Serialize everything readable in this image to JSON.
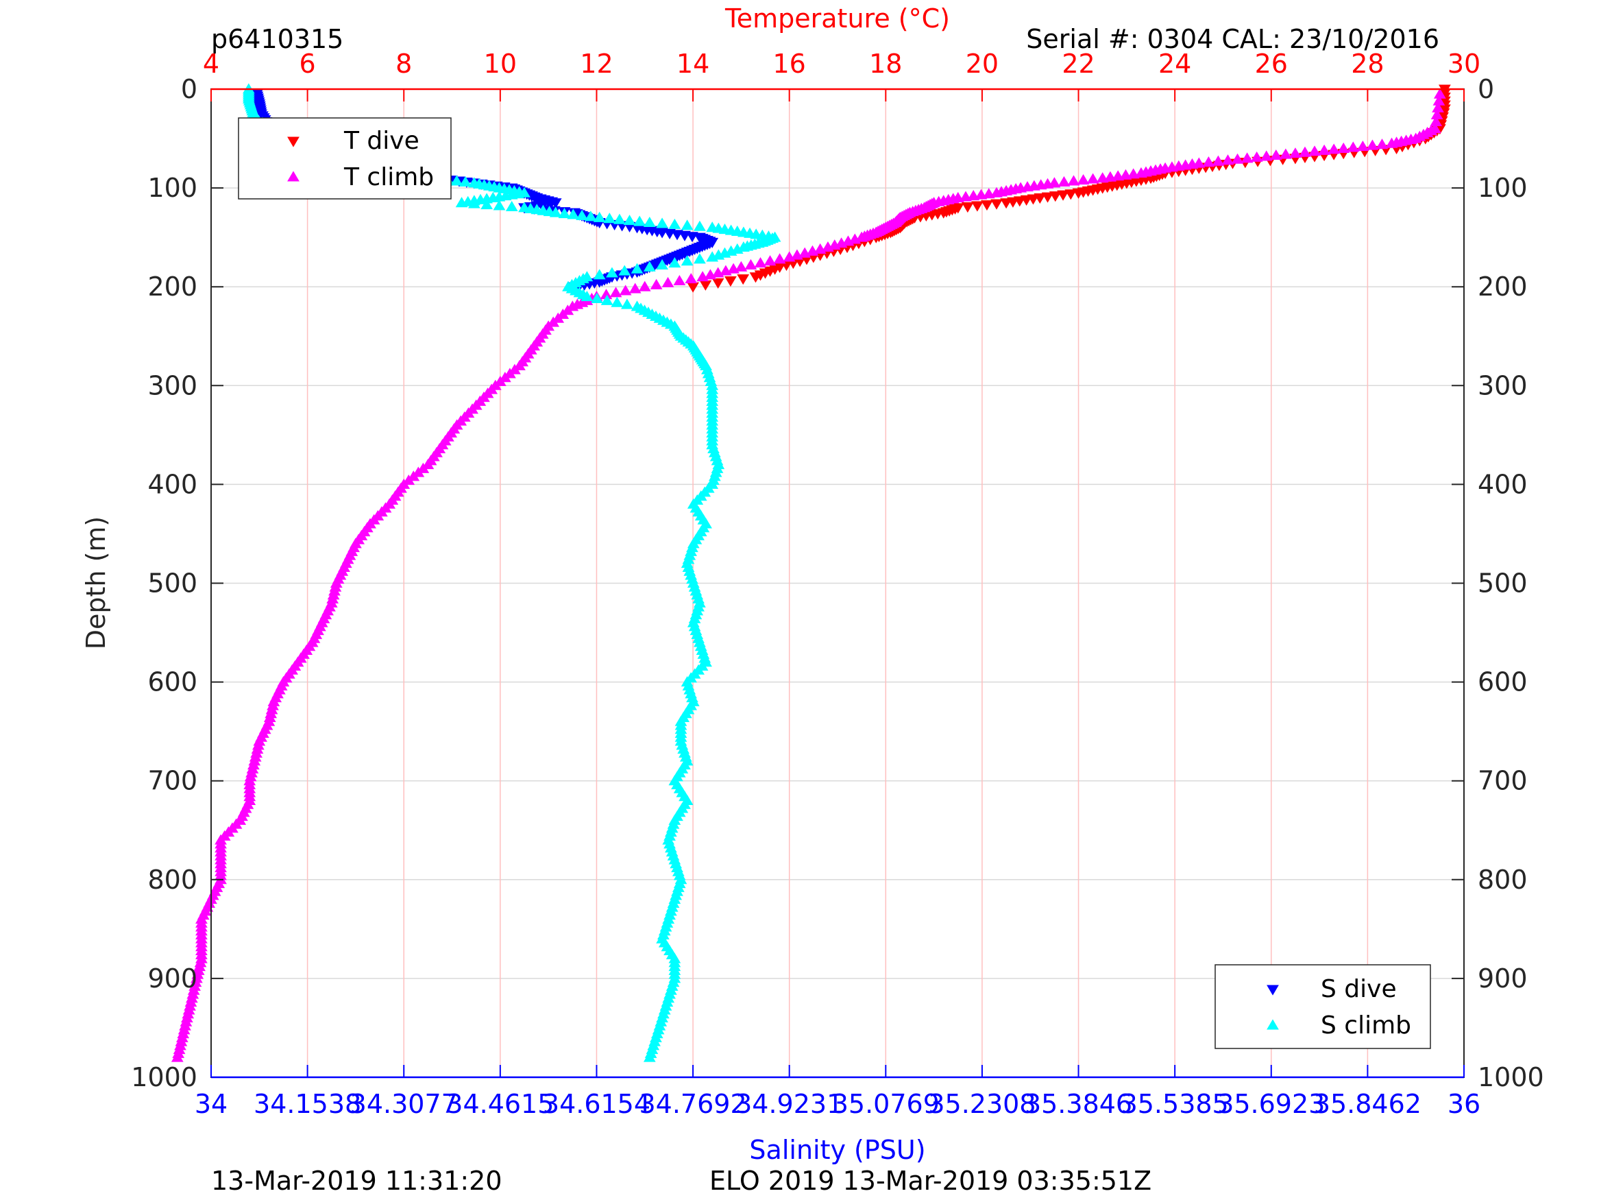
{
  "header": {
    "profile_id": "p6410315",
    "serial_cal": "Serial #: 0304  CAL: 23/10/2016"
  },
  "footer": {
    "timestamp_left": "13-Mar-2019 11:31:20",
    "timestamp_right": "ELO 2019 13-Mar-2019 03:35:51Z"
  },
  "colors": {
    "temperature_axis": "#ff0000",
    "salinity_axis": "#0000ff",
    "t_dive": "#ff0000",
    "t_climb": "#ff00ff",
    "s_dive": "#0000ff",
    "s_climb": "#00ffff",
    "temp_grid": "#ffbfbf",
    "depth_grid": "#d9d9d9"
  },
  "chart_data": {
    "type": "scatter",
    "y_axis": {
      "label": "Depth (m)",
      "range": [
        0,
        1000
      ],
      "inverted": true,
      "ticks": [
        "0",
        "100",
        "200",
        "300",
        "400",
        "500",
        "600",
        "700",
        "800",
        "900",
        "1000"
      ]
    },
    "temperature_axis": {
      "label": "Temperature (°C)",
      "position": "top",
      "range": [
        4,
        30
      ],
      "ticks": [
        "4",
        "6",
        "8",
        "10",
        "12",
        "14",
        "16",
        "18",
        "20",
        "22",
        "24",
        "26",
        "28",
        "30"
      ]
    },
    "salinity_axis": {
      "label": "Salinity (PSU)",
      "position": "bottom",
      "range": [
        34,
        36
      ],
      "ticks": [
        "34",
        "34.1538",
        "34.3077",
        "34.4615",
        "34.6154",
        "34.7692",
        "34.9231",
        "35.0769",
        "35.2308",
        "35.3846",
        "35.5385",
        "35.6923",
        "35.8462",
        "36"
      ]
    },
    "grid": true,
    "legends": [
      {
        "placement": "top-left",
        "entries": [
          "T dive",
          "T climb"
        ]
      },
      {
        "placement": "bottom-right",
        "entries": [
          "S dive",
          "S climb"
        ]
      }
    ],
    "series": [
      {
        "name": "T dive",
        "axis": "temperature",
        "marker": "triangle-down",
        "color": "#ff0000",
        "depth": [
          0,
          20,
          40,
          50,
          60,
          65,
          70,
          75,
          80,
          85,
          90,
          95,
          100,
          105,
          110,
          115,
          120,
          125,
          130,
          135,
          140,
          145,
          150,
          160,
          170,
          180,
          190,
          200
        ],
        "values": [
          29.6,
          29.6,
          29.5,
          29.2,
          28.6,
          27.5,
          26.5,
          25.2,
          24.5,
          23.8,
          23.5,
          23.0,
          22.5,
          22.0,
          21.2,
          20.5,
          19.5,
          19.2,
          18.6,
          18.4,
          18.3,
          18.1,
          17.8,
          17.2,
          16.5,
          15.8,
          15.3,
          14.0
        ]
      },
      {
        "name": "T climb",
        "axis": "temperature",
        "marker": "triangle-up",
        "color": "#ff00ff",
        "depth": [
          5,
          40,
          50,
          55,
          60,
          65,
          70,
          75,
          80,
          85,
          90,
          95,
          100,
          105,
          110,
          115,
          120,
          125,
          130,
          135,
          140,
          145,
          150,
          160,
          170,
          180,
          190,
          200,
          210,
          220,
          240,
          260,
          280,
          300,
          320,
          340,
          360,
          380,
          400,
          420,
          440,
          460,
          480,
          500,
          520,
          540,
          560,
          580,
          600,
          620,
          640,
          660,
          680,
          700,
          720,
          740,
          760,
          780,
          800,
          820,
          840,
          860,
          880,
          900,
          920,
          940,
          960,
          980
        ],
        "values": [
          29.5,
          29.4,
          29.0,
          28.5,
          27.5,
          26.5,
          25.5,
          24.5,
          23.8,
          23.3,
          22.5,
          21.5,
          20.8,
          20.3,
          19.5,
          19.0,
          18.8,
          18.5,
          18.3,
          18.2,
          18.0,
          17.8,
          17.5,
          16.8,
          16.0,
          15.0,
          14.2,
          13.0,
          12.0,
          11.5,
          11.0,
          10.7,
          10.4,
          9.9,
          9.5,
          9.1,
          8.8,
          8.5,
          8.0,
          7.7,
          7.3,
          7.0,
          6.8,
          6.6,
          6.5,
          6.3,
          6.1,
          5.8,
          5.5,
          5.3,
          5.2,
          5.0,
          4.9,
          4.8,
          4.8,
          4.6,
          4.2,
          4.2,
          4.2,
          4.0,
          3.8,
          3.8,
          3.8,
          3.7,
          3.6,
          3.5,
          3.4,
          3.3
        ]
      },
      {
        "name": "S dive",
        "axis": "salinity",
        "marker": "triangle-down",
        "color": "#0000ff",
        "depth": [
          5,
          15,
          25,
          35,
          45,
          50,
          55,
          60,
          65,
          70,
          75,
          80,
          85,
          90,
          95,
          100,
          105,
          110,
          115,
          120,
          125,
          130,
          135,
          140,
          145,
          150,
          155,
          160,
          165,
          170,
          175,
          180,
          185,
          190,
          195,
          200
        ],
        "values": [
          34.073,
          34.077,
          34.08,
          34.09,
          34.12,
          34.16,
          34.2,
          34.25,
          34.3,
          34.32,
          34.35,
          34.35,
          34.32,
          34.36,
          34.42,
          34.48,
          34.5,
          34.52,
          34.55,
          34.5,
          34.58,
          34.6,
          34.62,
          34.68,
          34.72,
          34.78,
          34.8,
          34.78,
          34.76,
          34.74,
          34.72,
          34.7,
          34.68,
          34.64,
          34.62,
          34.58
        ]
      },
      {
        "name": "S climb",
        "axis": "salinity",
        "marker": "triangle-up",
        "color": "#00ffff",
        "depth": [
          0,
          10,
          20,
          30,
          40,
          50,
          55,
          60,
          65,
          70,
          75,
          80,
          85,
          90,
          95,
          100,
          105,
          110,
          115,
          120,
          125,
          130,
          135,
          140,
          145,
          150,
          155,
          160,
          170,
          180,
          190,
          200,
          210,
          220,
          230,
          240,
          250,
          260,
          270,
          280,
          300,
          320,
          340,
          360,
          380,
          400,
          420,
          440,
          460,
          480,
          500,
          520,
          540,
          560,
          580,
          600,
          620,
          640,
          660,
          680,
          700,
          720,
          740,
          760,
          780,
          800,
          820,
          840,
          860,
          880,
          900,
          920,
          940,
          960,
          980
        ],
        "values": [
          34.06,
          34.06,
          34.065,
          34.07,
          34.1,
          34.15,
          34.2,
          34.12,
          34.2,
          34.25,
          34.3,
          34.2,
          34.28,
          34.35,
          34.42,
          34.46,
          34.5,
          34.45,
          34.4,
          34.5,
          34.55,
          34.62,
          34.7,
          34.8,
          34.85,
          34.9,
          34.88,
          34.85,
          34.8,
          34.7,
          34.6,
          34.57,
          34.6,
          34.68,
          34.71,
          34.74,
          34.75,
          34.77,
          34.78,
          34.79,
          34.8,
          34.8,
          34.8,
          34.8,
          34.81,
          34.8,
          34.77,
          34.79,
          34.77,
          34.76,
          34.77,
          34.78,
          34.77,
          34.78,
          34.79,
          34.76,
          34.77,
          34.75,
          34.75,
          34.76,
          34.74,
          34.76,
          34.74,
          34.73,
          34.74,
          34.75,
          34.74,
          34.73,
          34.72,
          34.74,
          34.74,
          34.73,
          34.72,
          34.71,
          34.7
        ]
      }
    ]
  }
}
